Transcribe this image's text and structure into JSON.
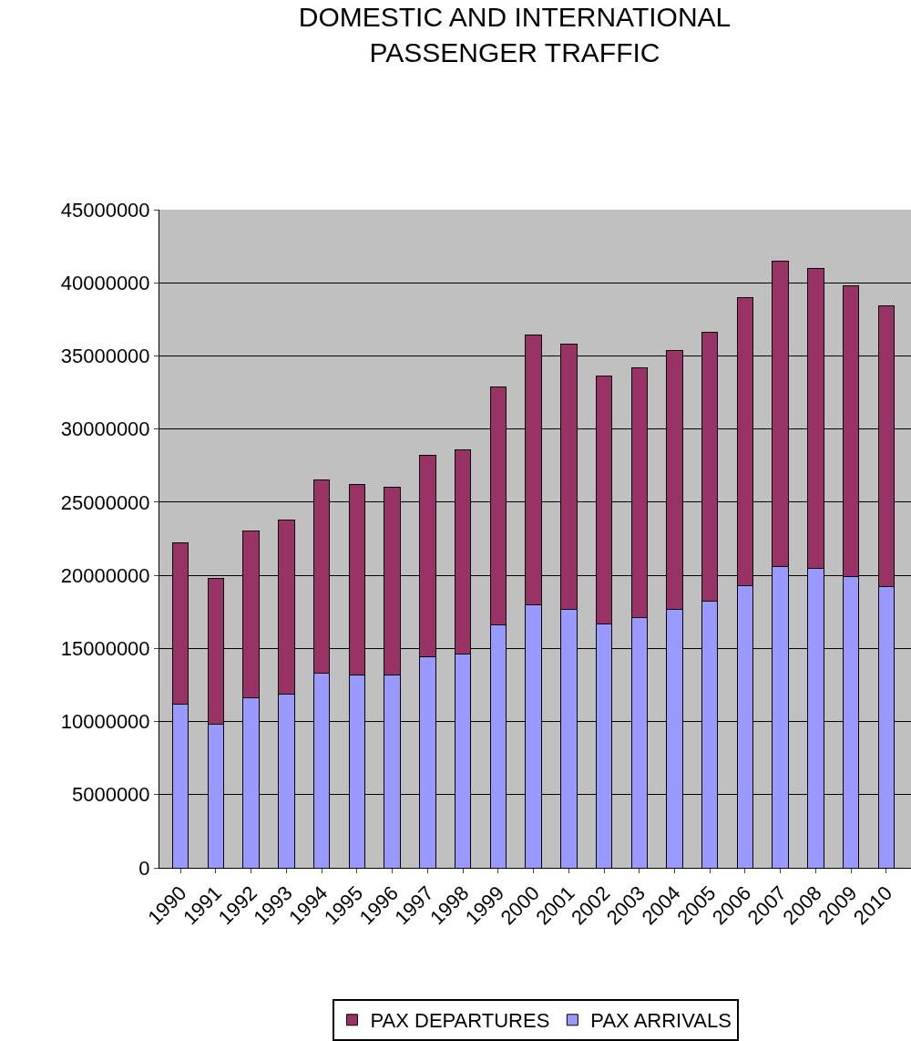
{
  "chart_data": {
    "type": "bar",
    "title": "DOMESTIC AND INTERNATIONAL\nPASSENGER TRAFFIC",
    "stacked": true,
    "categories": [
      "1990",
      "1991",
      "1992",
      "1993",
      "1994",
      "1995",
      "1996",
      "1997",
      "1998",
      "1999",
      "2000",
      "2001",
      "2002",
      "2003",
      "2004",
      "2005",
      "2006",
      "2007",
      "2008",
      "2009",
      "2010"
    ],
    "series": [
      {
        "name": "PAX ARRIVALS",
        "color": "#9999ff",
        "values": [
          11200000,
          9800000,
          11600000,
          11900000,
          13300000,
          13200000,
          13200000,
          14400000,
          14600000,
          16600000,
          18000000,
          17700000,
          16700000,
          17100000,
          17700000,
          18200000,
          19300000,
          20600000,
          20500000,
          19900000,
          19200000
        ]
      },
      {
        "name": "PAX DEPARTURES",
        "color": "#993366",
        "values": [
          11000000,
          10000000,
          11400000,
          11900000,
          13200000,
          13000000,
          12800000,
          13800000,
          14000000,
          16300000,
          18400000,
          18100000,
          16900000,
          17100000,
          17700000,
          18400000,
          19700000,
          20900000,
          20500000,
          19900000,
          19200000
        ]
      }
    ],
    "ylim": [
      0,
      45000000
    ],
    "yticks": [
      0,
      5000000,
      10000000,
      15000000,
      20000000,
      25000000,
      30000000,
      35000000,
      40000000,
      45000000
    ],
    "grid": "y",
    "legend": "bottom"
  }
}
